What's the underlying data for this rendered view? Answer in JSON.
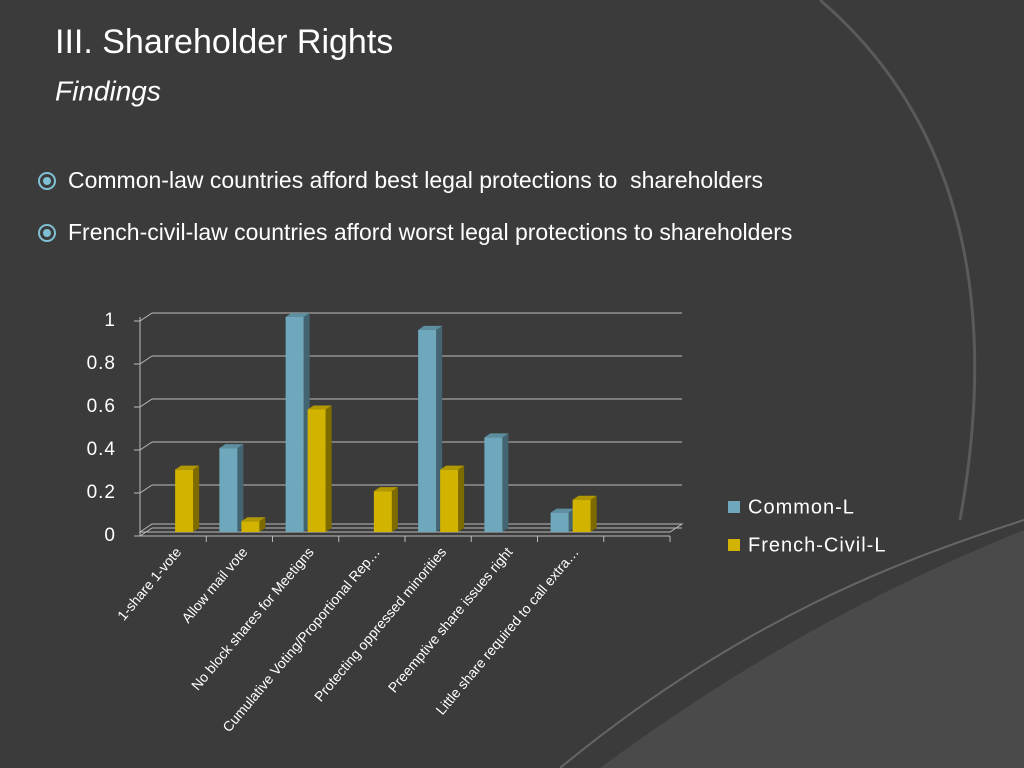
{
  "title": "III. Shareholder Rights",
  "subtitle": "Findings",
  "bullets": [
    "Common-law countries afford best legal protections to  shareholders",
    "French-civil-law countries afford worst legal protections to shareholders"
  ],
  "chart_data": {
    "type": "bar",
    "categories": [
      "1-share 1-vote",
      "Allow mail vote",
      "No block shares for Meetigns",
      "Cumulative Voting/Proportional Rep…",
      "Protecting oppressed minorities",
      "Preemptive share issues right",
      "Little share required to call extra…",
      null
    ],
    "series": [
      {
        "name": "Common-L",
        "color": "#6fa8bd",
        "values": [
          0,
          0.39,
          1,
          0,
          0.94,
          0.44,
          0.09,
          null
        ]
      },
      {
        "name": "French-Civil-L",
        "color": "#d1b300",
        "values": [
          0.29,
          0.05,
          0.57,
          0.19,
          0.29,
          0,
          0.15,
          null
        ]
      }
    ],
    "ylim": [
      0,
      1
    ],
    "yticks": [
      0,
      0.2,
      0.4,
      0.6,
      0.8,
      1
    ],
    "grid": true,
    "legend": "right"
  }
}
